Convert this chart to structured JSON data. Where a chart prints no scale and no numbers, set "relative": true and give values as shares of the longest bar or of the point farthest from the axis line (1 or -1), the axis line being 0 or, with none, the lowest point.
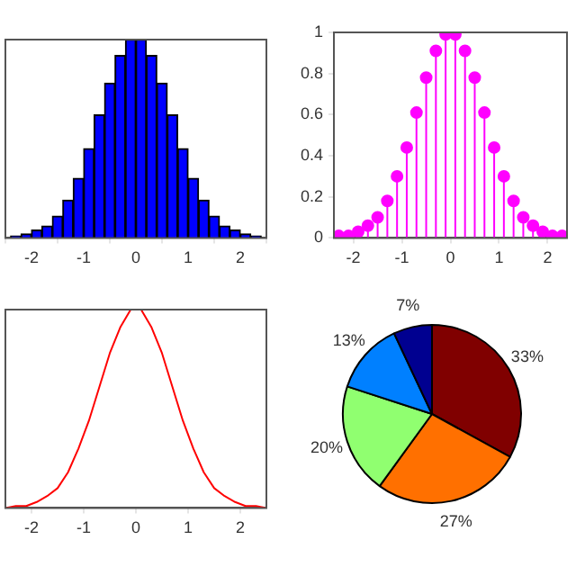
{
  "chart_data": [
    {
      "type": "bar",
      "relative": true,
      "color": "#0000ff",
      "x": [
        -2.3,
        -2.1,
        -1.9,
        -1.7,
        -1.5,
        -1.3,
        -1.1,
        -0.9,
        -0.7,
        -0.5,
        -0.3,
        -0.1,
        0.1,
        0.3,
        0.5,
        0.7,
        0.9,
        1.1,
        1.3,
        1.5,
        1.7,
        1.9,
        2.1,
        2.3
      ],
      "values": [
        0.01,
        0.02,
        0.04,
        0.06,
        0.11,
        0.19,
        0.3,
        0.45,
        0.62,
        0.78,
        0.92,
        1,
        1,
        0.92,
        0.78,
        0.62,
        0.45,
        0.3,
        0.19,
        0.11,
        0.06,
        0.04,
        0.02,
        0.01
      ],
      "xlim": [
        -2.5,
        2.5
      ],
      "xticks": [
        -2,
        -1,
        0,
        1,
        2
      ],
      "grid": false
    },
    {
      "type": "lollipop",
      "color": "#ff00ff",
      "marker": "circle",
      "x": [
        -2.3,
        -2.1,
        -1.9,
        -1.7,
        -1.5,
        -1.3,
        -1.1,
        -0.9,
        -0.7,
        -0.5,
        -0.3,
        -0.1,
        0.1,
        0.3,
        0.5,
        0.7,
        0.9,
        1.1,
        1.3,
        1.5,
        1.7,
        1.9,
        2.1,
        2.3
      ],
      "values": [
        0.01,
        0.01,
        0.03,
        0.06,
        0.1,
        0.18,
        0.3,
        0.44,
        0.61,
        0.78,
        0.91,
        0.99,
        0.99,
        0.91,
        0.78,
        0.61,
        0.44,
        0.3,
        0.18,
        0.1,
        0.06,
        0.03,
        0.01,
        0.01
      ],
      "xlim": [
        -2.4,
        2.4
      ],
      "xticks": [
        -2,
        -1,
        0,
        1,
        2
      ],
      "ylim": [
        0,
        1
      ],
      "yticks": [
        0,
        0.2,
        0.4,
        0.6,
        0.8,
        1
      ],
      "grid": false
    },
    {
      "type": "line",
      "relative": true,
      "color": "#ff0000",
      "x": [
        -2.5,
        -2.3,
        -2.1,
        -1.9,
        -1.7,
        -1.5,
        -1.3,
        -1.1,
        -0.9,
        -0.7,
        -0.5,
        -0.3,
        -0.1,
        0.1,
        0.3,
        0.5,
        0.7,
        0.9,
        1.1,
        1.3,
        1.5,
        1.7,
        1.9,
        2.1,
        2.3,
        2.5
      ],
      "values": [
        0,
        0.01,
        0.01,
        0.03,
        0.06,
        0.1,
        0.18,
        0.3,
        0.44,
        0.61,
        0.78,
        0.91,
        1,
        1,
        0.91,
        0.78,
        0.61,
        0.44,
        0.3,
        0.18,
        0.1,
        0.06,
        0.03,
        0.01,
        0.01,
        0
      ],
      "xlim": [
        -2.5,
        2.5
      ],
      "xticks": [
        -2,
        -1,
        0,
        1,
        2
      ],
      "grid": false
    },
    {
      "type": "pie",
      "categories": [
        null,
        null,
        null,
        null,
        null
      ],
      "values": [
        33,
        27,
        20,
        13,
        7
      ],
      "colors": [
        "#800000",
        "#ff7000",
        "#90ff70",
        "#0080ff",
        "#000090"
      ],
      "value_labels": [
        "33%",
        "27%",
        "20%",
        "13%",
        "7%"
      ]
    }
  ]
}
